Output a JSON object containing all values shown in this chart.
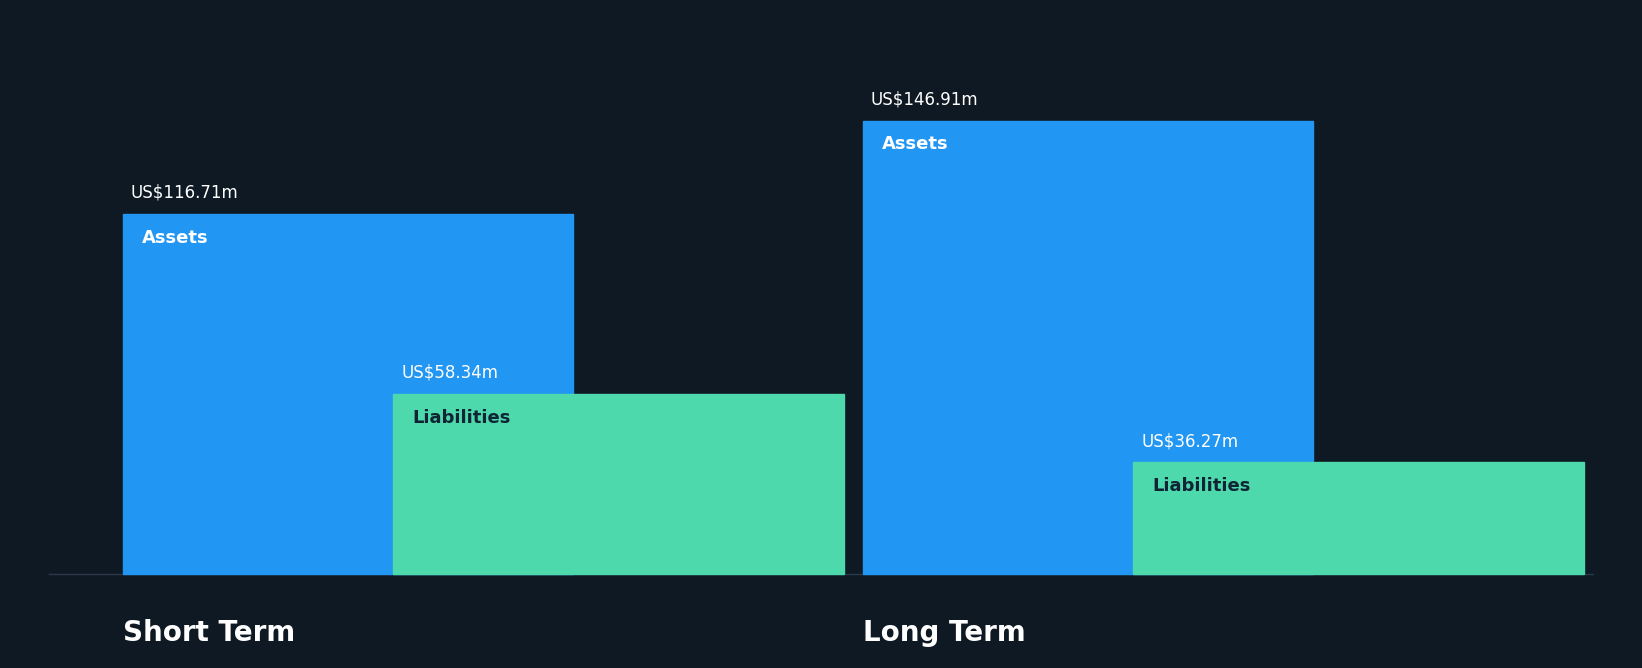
{
  "background_color": "#0f1923",
  "bar_color_assets": "#2196f3",
  "bar_color_liabilities": "#4dd9ac",
  "text_color_white": "#ffffff",
  "text_color_dark": "#0f2535",
  "groups": [
    {
      "label": "Short Term",
      "assets_value": 116.71,
      "liabilities_value": 58.34,
      "assets_label": "US$116.71m",
      "liabilities_label": "US$58.34m"
    },
    {
      "label": "Long Term",
      "assets_value": 146.91,
      "liabilities_value": 36.27,
      "assets_label": "US$146.91m",
      "liabilities_label": "US$36.27m"
    }
  ],
  "max_value": 160,
  "bar_width": 0.28,
  "assets_bar_label": "Assets",
  "liabilities_bar_label": "Liabilities",
  "value_fontsize": 12,
  "group_label_fontsize": 20,
  "inner_label_fontsize": 13
}
